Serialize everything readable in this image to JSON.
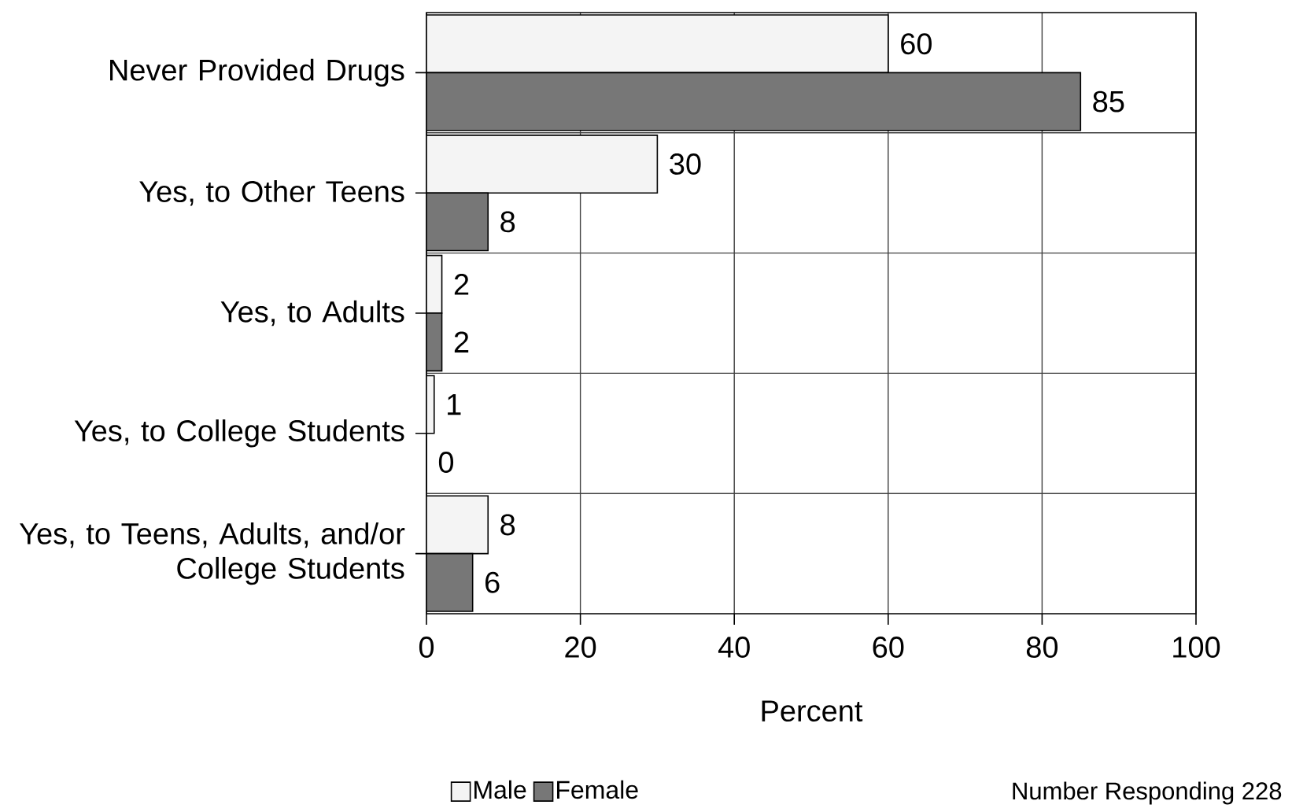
{
  "chart_data": {
    "type": "bar",
    "orientation": "horizontal",
    "categories": [
      "Never Provided Drugs",
      "Yes, to Other Teens",
      "Yes, to Adults",
      "Yes, to College Students",
      "Yes, to Teens, Adults, and/or College Students"
    ],
    "series": [
      {
        "name": "Male",
        "color": "#f4f4f4",
        "values": [
          60,
          30,
          2,
          1,
          8
        ]
      },
      {
        "name": "Female",
        "color": "#777777",
        "values": [
          85,
          8,
          2,
          0,
          6
        ]
      }
    ],
    "xlabel": "Percent",
    "xlim": [
      0,
      100
    ],
    "xticks": [
      0,
      20,
      40,
      60,
      80,
      100
    ],
    "grid": true,
    "legend": "bottom left",
    "data_labels": true,
    "annotations": [
      "Number Responding 228"
    ]
  }
}
